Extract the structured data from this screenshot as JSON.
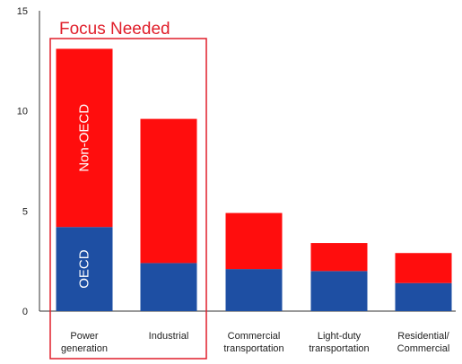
{
  "chart_data": {
    "type": "bar",
    "stacked": true,
    "categories": [
      [
        "Power",
        "generation"
      ],
      [
        "Industrial"
      ],
      [
        "Commercial",
        "transportation"
      ],
      [
        "Light-duty",
        "transportation"
      ],
      [
        "Residential/",
        "Commercial"
      ]
    ],
    "series": [
      {
        "name": "OECD",
        "color": "#1e4fa3",
        "values": [
          4.2,
          2.4,
          2.1,
          2.0,
          1.4
        ]
      },
      {
        "name": "Non-OECD",
        "color": "#ff0d0d",
        "values": [
          8.9,
          7.2,
          2.8,
          1.4,
          1.5
        ]
      }
    ],
    "title": "",
    "xlabel": "",
    "ylabel": "",
    "ylim": [
      0,
      15
    ],
    "yticks": [
      0,
      5,
      10,
      15
    ],
    "grid": false,
    "legend": "none",
    "annotation": {
      "text": "Focus Needed",
      "color": "#e01e2a",
      "covers_categories": [
        0,
        1
      ]
    }
  }
}
